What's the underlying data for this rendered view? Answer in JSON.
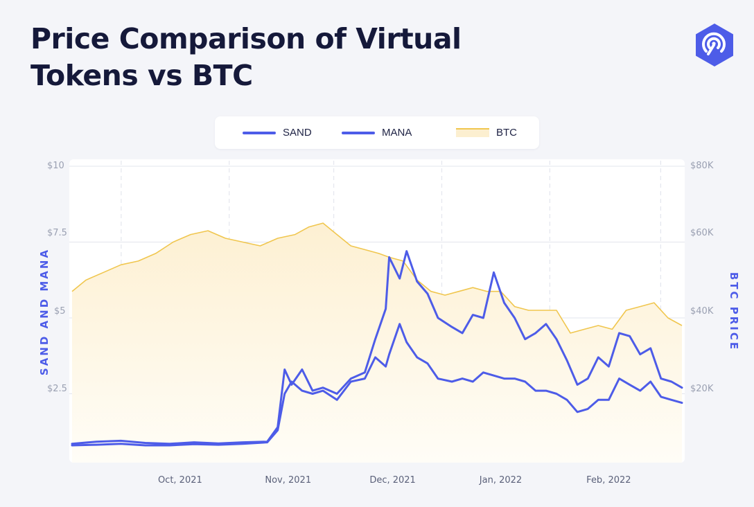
{
  "header": {
    "title_line1": "Price Comparison of Virtual",
    "title_line2": "Tokens vs BTC",
    "logo_icon": "coin-radar-logo-icon"
  },
  "legend": {
    "sand": "SAND",
    "mana": "MANA",
    "btc": "BTC"
  },
  "colors": {
    "token_line": "#4d5ce8",
    "btc_line": "#f0c64e",
    "btc_fill": "#fdf1d6",
    "title": "#15193a"
  },
  "axes": {
    "left_title": "SAND AND MANA",
    "right_title": "BTC PRICE",
    "left_ticks": [
      "$10",
      "$7.5",
      "$5",
      "$2.5"
    ],
    "right_ticks": [
      "$80K",
      "$60K",
      "$40K",
      "$20K"
    ],
    "x_ticks": [
      "Oct, 2021",
      "Nov, 2021",
      "Dec, 2021",
      "Jan, 2022",
      "Feb, 2022"
    ]
  },
  "chart_data": {
    "type": "line",
    "x_start": "2021-09-01",
    "x_end": "2022-02-23",
    "x_tick_dates": [
      "2021-10-01",
      "2021-11-01",
      "2021-12-01",
      "2022-01-01",
      "2022-02-01"
    ],
    "left_axis": {
      "title": "SAND AND MANA",
      "ylim": [
        0,
        10
      ],
      "ticks": [
        2.5,
        5,
        7.5,
        10
      ]
    },
    "right_axis": {
      "title": "BTC PRICE",
      "ylim": [
        0,
        80000
      ],
      "ticks": [
        20000,
        40000,
        60000,
        80000
      ]
    },
    "grid": true,
    "legend_position": "top",
    "series": [
      {
        "name": "SAND",
        "axis": "left",
        "style": "line",
        "points": [
          [
            "2021-09-01",
            0.85
          ],
          [
            "2021-09-08",
            0.92
          ],
          [
            "2021-09-15",
            0.95
          ],
          [
            "2021-09-22",
            0.88
          ],
          [
            "2021-09-29",
            0.85
          ],
          [
            "2021-10-06",
            0.9
          ],
          [
            "2021-10-13",
            0.86
          ],
          [
            "2021-10-20",
            0.9
          ],
          [
            "2021-10-27",
            0.92
          ],
          [
            "2021-10-30",
            1.4
          ],
          [
            "2021-11-01",
            3.3
          ],
          [
            "2021-11-03",
            2.8
          ],
          [
            "2021-11-06",
            3.3
          ],
          [
            "2021-11-09",
            2.6
          ],
          [
            "2021-11-12",
            2.7
          ],
          [
            "2021-11-16",
            2.5
          ],
          [
            "2021-11-20",
            3.0
          ],
          [
            "2021-11-24",
            3.2
          ],
          [
            "2021-11-27",
            4.3
          ],
          [
            "2021-11-30",
            5.3
          ],
          [
            "2021-12-01",
            7.0
          ],
          [
            "2021-12-04",
            6.3
          ],
          [
            "2021-12-06",
            7.2
          ],
          [
            "2021-12-09",
            6.2
          ],
          [
            "2021-12-12",
            5.8
          ],
          [
            "2021-12-15",
            5.0
          ],
          [
            "2021-12-19",
            4.7
          ],
          [
            "2021-12-22",
            4.5
          ],
          [
            "2021-12-25",
            5.1
          ],
          [
            "2021-12-28",
            5.0
          ],
          [
            "2021-12-31",
            6.5
          ],
          [
            "2022-01-03",
            5.5
          ],
          [
            "2022-01-06",
            5.0
          ],
          [
            "2022-01-09",
            4.3
          ],
          [
            "2022-01-12",
            4.5
          ],
          [
            "2022-01-15",
            4.8
          ],
          [
            "2022-01-18",
            4.3
          ],
          [
            "2022-01-21",
            3.6
          ],
          [
            "2022-01-24",
            2.8
          ],
          [
            "2022-01-27",
            3.0
          ],
          [
            "2022-01-30",
            3.7
          ],
          [
            "2022-02-02",
            3.4
          ],
          [
            "2022-02-05",
            4.5
          ],
          [
            "2022-02-08",
            4.4
          ],
          [
            "2022-02-11",
            3.8
          ],
          [
            "2022-02-14",
            4.0
          ],
          [
            "2022-02-17",
            3.0
          ],
          [
            "2022-02-20",
            2.9
          ],
          [
            "2022-02-23",
            2.7
          ]
        ]
      },
      {
        "name": "MANA",
        "axis": "left",
        "style": "line",
        "points": [
          [
            "2021-09-01",
            0.8
          ],
          [
            "2021-09-08",
            0.82
          ],
          [
            "2021-09-15",
            0.85
          ],
          [
            "2021-09-22",
            0.8
          ],
          [
            "2021-09-29",
            0.8
          ],
          [
            "2021-10-06",
            0.84
          ],
          [
            "2021-10-13",
            0.82
          ],
          [
            "2021-10-20",
            0.85
          ],
          [
            "2021-10-27",
            0.9
          ],
          [
            "2021-10-30",
            1.3
          ],
          [
            "2021-11-01",
            2.5
          ],
          [
            "2021-11-03",
            2.9
          ],
          [
            "2021-11-06",
            2.6
          ],
          [
            "2021-11-09",
            2.5
          ],
          [
            "2021-11-12",
            2.6
          ],
          [
            "2021-11-16",
            2.3
          ],
          [
            "2021-11-20",
            2.9
          ],
          [
            "2021-11-24",
            3.0
          ],
          [
            "2021-11-27",
            3.7
          ],
          [
            "2021-11-30",
            3.4
          ],
          [
            "2021-12-01",
            3.8
          ],
          [
            "2021-12-04",
            4.8
          ],
          [
            "2021-12-06",
            4.2
          ],
          [
            "2021-12-09",
            3.7
          ],
          [
            "2021-12-12",
            3.5
          ],
          [
            "2021-12-15",
            3.0
          ],
          [
            "2021-12-19",
            2.9
          ],
          [
            "2021-12-22",
            3.0
          ],
          [
            "2021-12-25",
            2.9
          ],
          [
            "2021-12-28",
            3.2
          ],
          [
            "2021-12-31",
            3.1
          ],
          [
            "2022-01-03",
            3.0
          ],
          [
            "2022-01-06",
            3.0
          ],
          [
            "2022-01-09",
            2.9
          ],
          [
            "2022-01-12",
            2.6
          ],
          [
            "2022-01-15",
            2.6
          ],
          [
            "2022-01-18",
            2.5
          ],
          [
            "2022-01-21",
            2.3
          ],
          [
            "2022-01-24",
            1.9
          ],
          [
            "2022-01-27",
            2.0
          ],
          [
            "2022-01-30",
            2.3
          ],
          [
            "2022-02-02",
            2.3
          ],
          [
            "2022-02-05",
            3.0
          ],
          [
            "2022-02-08",
            2.8
          ],
          [
            "2022-02-11",
            2.6
          ],
          [
            "2022-02-14",
            2.9
          ],
          [
            "2022-02-17",
            2.4
          ],
          [
            "2022-02-20",
            2.3
          ],
          [
            "2022-02-23",
            2.2
          ]
        ]
      },
      {
        "name": "BTC",
        "axis": "right",
        "style": "area",
        "points": [
          [
            "2021-09-01",
            47000
          ],
          [
            "2021-09-05",
            50000
          ],
          [
            "2021-09-10",
            52000
          ],
          [
            "2021-09-15",
            54000
          ],
          [
            "2021-09-20",
            55000
          ],
          [
            "2021-09-25",
            57000
          ],
          [
            "2021-09-30",
            60000
          ],
          [
            "2021-10-05",
            62000
          ],
          [
            "2021-10-10",
            63000
          ],
          [
            "2021-10-15",
            61000
          ],
          [
            "2021-10-20",
            60000
          ],
          [
            "2021-10-25",
            59000
          ],
          [
            "2021-10-30",
            61000
          ],
          [
            "2021-11-04",
            62000
          ],
          [
            "2021-11-08",
            64000
          ],
          [
            "2021-11-12",
            65000
          ],
          [
            "2021-11-16",
            62000
          ],
          [
            "2021-11-20",
            59000
          ],
          [
            "2021-11-24",
            58000
          ],
          [
            "2021-11-28",
            57000
          ],
          [
            "2021-12-01",
            56000
          ],
          [
            "2021-12-05",
            55000
          ],
          [
            "2021-12-09",
            50000
          ],
          [
            "2021-12-13",
            47000
          ],
          [
            "2021-12-17",
            46000
          ],
          [
            "2021-12-21",
            47000
          ],
          [
            "2021-12-25",
            48000
          ],
          [
            "2021-12-29",
            47000
          ],
          [
            "2022-01-02",
            47000
          ],
          [
            "2022-01-06",
            43000
          ],
          [
            "2022-01-10",
            42000
          ],
          [
            "2022-01-14",
            42000
          ],
          [
            "2022-01-18",
            42000
          ],
          [
            "2022-01-22",
            36000
          ],
          [
            "2022-01-26",
            37000
          ],
          [
            "2022-01-30",
            38000
          ],
          [
            "2022-02-03",
            37000
          ],
          [
            "2022-02-07",
            42000
          ],
          [
            "2022-02-11",
            43000
          ],
          [
            "2022-02-15",
            44000
          ],
          [
            "2022-02-19",
            40000
          ],
          [
            "2022-02-23",
            38000
          ]
        ]
      }
    ]
  }
}
